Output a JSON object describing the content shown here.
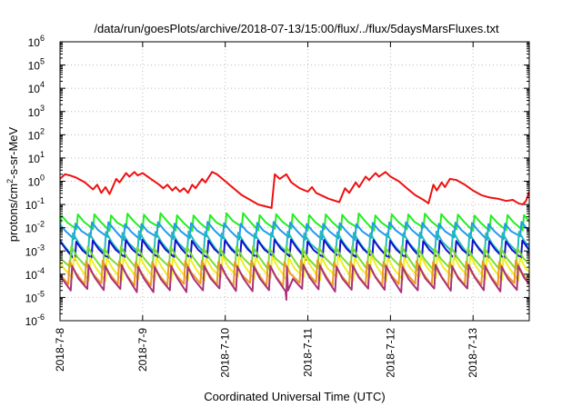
{
  "chart_data": {
    "type": "line",
    "title": "/data/run/goesPlots/archive/2018-07-13/15:00/flux/../flux/5daysMarsFluxes.txt",
    "xlabel": "Coordinated Universal Time (UTC)",
    "ylabel_parts": [
      "protons/cm",
      "2",
      "-s-sr-MeV"
    ],
    "y_scale": "log",
    "ylim_exp": [
      -6,
      6
    ],
    "y_ticks": [
      {
        "base": "10",
        "exp": "-6"
      },
      {
        "base": "10",
        "exp": "-5"
      },
      {
        "base": "10",
        "exp": "-4"
      },
      {
        "base": "10",
        "exp": "-3"
      },
      {
        "base": "10",
        "exp": "-2"
      },
      {
        "base": "10",
        "exp": "-1"
      },
      {
        "base": "10",
        "exp": "0"
      },
      {
        "base": "10",
        "exp": "1"
      },
      {
        "base": "10",
        "exp": "2"
      },
      {
        "base": "10",
        "exp": "3"
      },
      {
        "base": "10",
        "exp": "4"
      },
      {
        "base": "10",
        "exp": "5"
      },
      {
        "base": "10",
        "exp": "6"
      }
    ],
    "x_ticks": [
      "2018-7-8",
      "2018-7-9",
      "2018-7-10",
      "2018-7-11",
      "2018-7-12",
      "2018-7-13"
    ],
    "xlim_days": [
      0,
      5.68
    ],
    "grid": true,
    "series": [
      {
        "color": "#ee1111",
        "log_points": [
          [
            0,
            0.1
          ],
          [
            0.06,
            0.3
          ],
          [
            0.12,
            0.25
          ],
          [
            0.2,
            0.15
          ],
          [
            0.3,
            -0.05
          ],
          [
            0.4,
            -0.35
          ],
          [
            0.45,
            -0.15
          ],
          [
            0.5,
            -0.5
          ],
          [
            0.55,
            -0.25
          ],
          [
            0.6,
            -0.55
          ],
          [
            0.68,
            0.1
          ],
          [
            0.72,
            -0.05
          ],
          [
            0.8,
            0.35
          ],
          [
            0.84,
            0.2
          ],
          [
            0.9,
            0.4
          ],
          [
            0.94,
            0.25
          ],
          [
            1,
            0.35
          ],
          [
            1.1,
            0.1
          ],
          [
            1.2,
            -0.15
          ],
          [
            1.25,
            -0.3
          ],
          [
            1.3,
            -0.15
          ],
          [
            1.36,
            -0.4
          ],
          [
            1.4,
            -0.25
          ],
          [
            1.45,
            -0.45
          ],
          [
            1.5,
            -0.3
          ],
          [
            1.55,
            -0.5
          ],
          [
            1.6,
            -0.15
          ],
          [
            1.64,
            -0.3
          ],
          [
            1.72,
            0.1
          ],
          [
            1.76,
            -0.05
          ],
          [
            1.84,
            0.4
          ],
          [
            1.9,
            0.3
          ],
          [
            2,
            0
          ],
          [
            2.2,
            -0.6
          ],
          [
            2.4,
            -1
          ],
          [
            2.56,
            -1.15
          ],
          [
            2.6,
            0.3
          ],
          [
            2.66,
            0.1
          ],
          [
            2.74,
            0.3
          ],
          [
            2.8,
            -0.05
          ],
          [
            2.9,
            -0.3
          ],
          [
            3.0,
            -0.45
          ],
          [
            3.05,
            -0.25
          ],
          [
            3.1,
            -0.5
          ],
          [
            3.25,
            -0.75
          ],
          [
            3.38,
            -0.9
          ],
          [
            3.45,
            -0.3
          ],
          [
            3.5,
            -0.5
          ],
          [
            3.58,
            -0.05
          ],
          [
            3.62,
            -0.25
          ],
          [
            3.7,
            0.2
          ],
          [
            3.74,
            0.05
          ],
          [
            3.82,
            0.35
          ],
          [
            3.86,
            0.2
          ],
          [
            3.94,
            0.4
          ],
          [
            4.0,
            0.2
          ],
          [
            4.1,
            0
          ],
          [
            4.2,
            -0.3
          ],
          [
            4.3,
            -0.6
          ],
          [
            4.4,
            -0.8
          ],
          [
            4.46,
            -0.95
          ],
          [
            4.52,
            -0.15
          ],
          [
            4.56,
            -0.4
          ],
          [
            4.62,
            -0.05
          ],
          [
            4.66,
            -0.25
          ],
          [
            4.72,
            0.1
          ],
          [
            4.8,
            0.05
          ],
          [
            4.9,
            -0.15
          ],
          [
            5.0,
            -0.4
          ],
          [
            5.1,
            -0.6
          ],
          [
            5.2,
            -0.7
          ],
          [
            5.3,
            -0.75
          ],
          [
            5.4,
            -0.85
          ],
          [
            5.48,
            -0.8
          ],
          [
            5.55,
            -0.95
          ],
          [
            5.6,
            -1.0
          ],
          [
            5.64,
            -0.85
          ],
          [
            5.68,
            -0.45
          ]
        ]
      },
      {
        "color": "#22ee22",
        "osc": {
          "period": 0.2,
          "hi": -1.42,
          "lo": -2.05,
          "phase": 0.0
        }
      },
      {
        "color": "#2299ee",
        "osc": {
          "period": 0.2,
          "hi": -1.8,
          "lo": -2.45,
          "phase": 0.03
        }
      },
      {
        "color": "#22bbbb",
        "osc": {
          "period": 0.2,
          "hi": -2.2,
          "lo": -3.1,
          "phase": 0.06
        }
      },
      {
        "color": "#1111cc",
        "osc": {
          "period": 0.2,
          "hi": -2.55,
          "lo": -3.3,
          "phase": 0.02
        }
      },
      {
        "color": "#77dd33",
        "osc": {
          "period": 0.2,
          "hi": -2.85,
          "lo": -3.75,
          "phase": 0.08
        }
      },
      {
        "color": "#eeee22",
        "osc": {
          "period": 0.2,
          "hi": -3.25,
          "lo": -4.2,
          "phase": 0.05
        }
      },
      {
        "color": "#ee9922",
        "osc": {
          "period": 0.2,
          "hi": -3.45,
          "lo": -4.45,
          "phase": 0.1
        }
      },
      {
        "color": "#aa3377",
        "osc": {
          "period": 0.2,
          "hi": -3.65,
          "lo": -4.7,
          "phase": 0.07
        }
      }
    ]
  }
}
